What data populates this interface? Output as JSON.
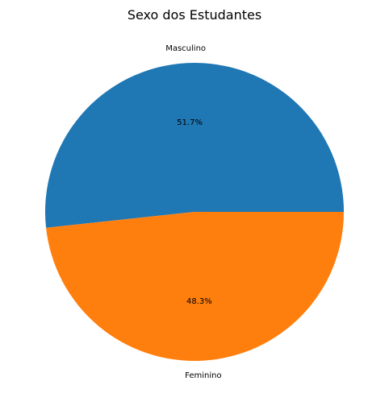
{
  "chart_data": {
    "type": "pie",
    "title": "Sexo dos Estudantes",
    "categories": [
      "Masculino",
      "Feminino"
    ],
    "values": [
      51.7,
      48.3
    ],
    "percent_labels": [
      "51.7%",
      "48.3%"
    ],
    "colors": [
      "#1f77b4",
      "#ff7f0e"
    ],
    "start_angle_deg": 0,
    "direction": "counterclockwise",
    "legend": "none"
  }
}
